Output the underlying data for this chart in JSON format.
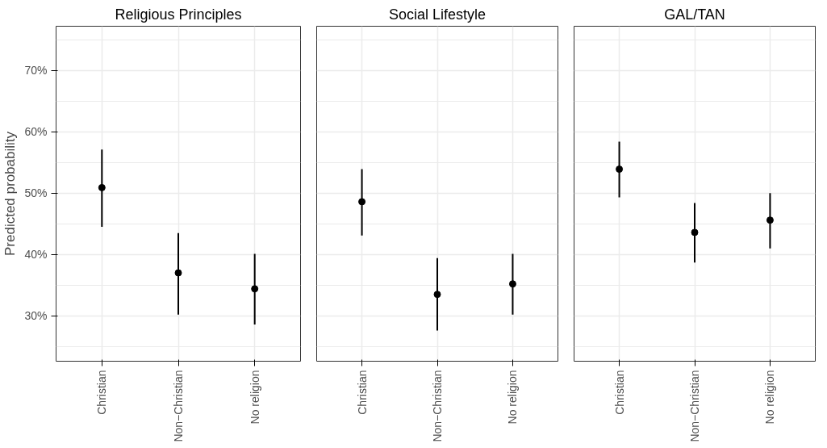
{
  "chart_data": [
    {
      "type": "scatter",
      "title": "Religious Principles",
      "ylabel": "Predicted probability",
      "categories": [
        "Christian",
        "Non−Christian",
        "No religion"
      ],
      "values": [
        50.9,
        37.0,
        34.4
      ],
      "errors": [
        [
          44.5,
          57.1
        ],
        [
          30.2,
          43.5
        ],
        [
          28.6,
          40.1
        ]
      ],
      "color": "#000000",
      "marker": "circle",
      "ylim": [
        22.6,
        77.2
      ],
      "yticks": [
        {
          "value": 30,
          "label": "30%"
        },
        {
          "value": 40,
          "label": "40%"
        },
        {
          "value": 50,
          "label": "50%"
        },
        {
          "value": 60,
          "label": "60%"
        },
        {
          "value": 70,
          "label": "70%"
        }
      ],
      "grid": true
    },
    {
      "type": "scatter",
      "title": "Social Lifestyle",
      "categories": [
        "Christian",
        "Non−Christian",
        "No religion"
      ],
      "values": [
        48.6,
        33.5,
        35.2
      ],
      "errors": [
        [
          43.1,
          53.9
        ],
        [
          27.6,
          39.4
        ],
        [
          30.2,
          40.1
        ]
      ],
      "color": "#000000",
      "marker": "circle",
      "ylim": [
        22.6,
        77.2
      ],
      "yticks": [
        30,
        40,
        50,
        60,
        70
      ],
      "grid": true,
      "tick_labels": "x"
    },
    {
      "type": "scatter",
      "title": "GAL/TAN",
      "categories": [
        "Christian",
        "Non−Christian",
        "No religion"
      ],
      "values": [
        53.9,
        43.6,
        45.6
      ],
      "errors": [
        [
          49.3,
          58.4
        ],
        [
          38.7,
          48.4
        ],
        [
          41.0,
          50.0
        ]
      ],
      "color": "#000000",
      "marker": "circle",
      "ylim": [
        22.6,
        77.2
      ],
      "yticks": [
        30,
        40,
        50,
        60,
        70
      ],
      "grid": true,
      "tick_labels": "x"
    }
  ]
}
